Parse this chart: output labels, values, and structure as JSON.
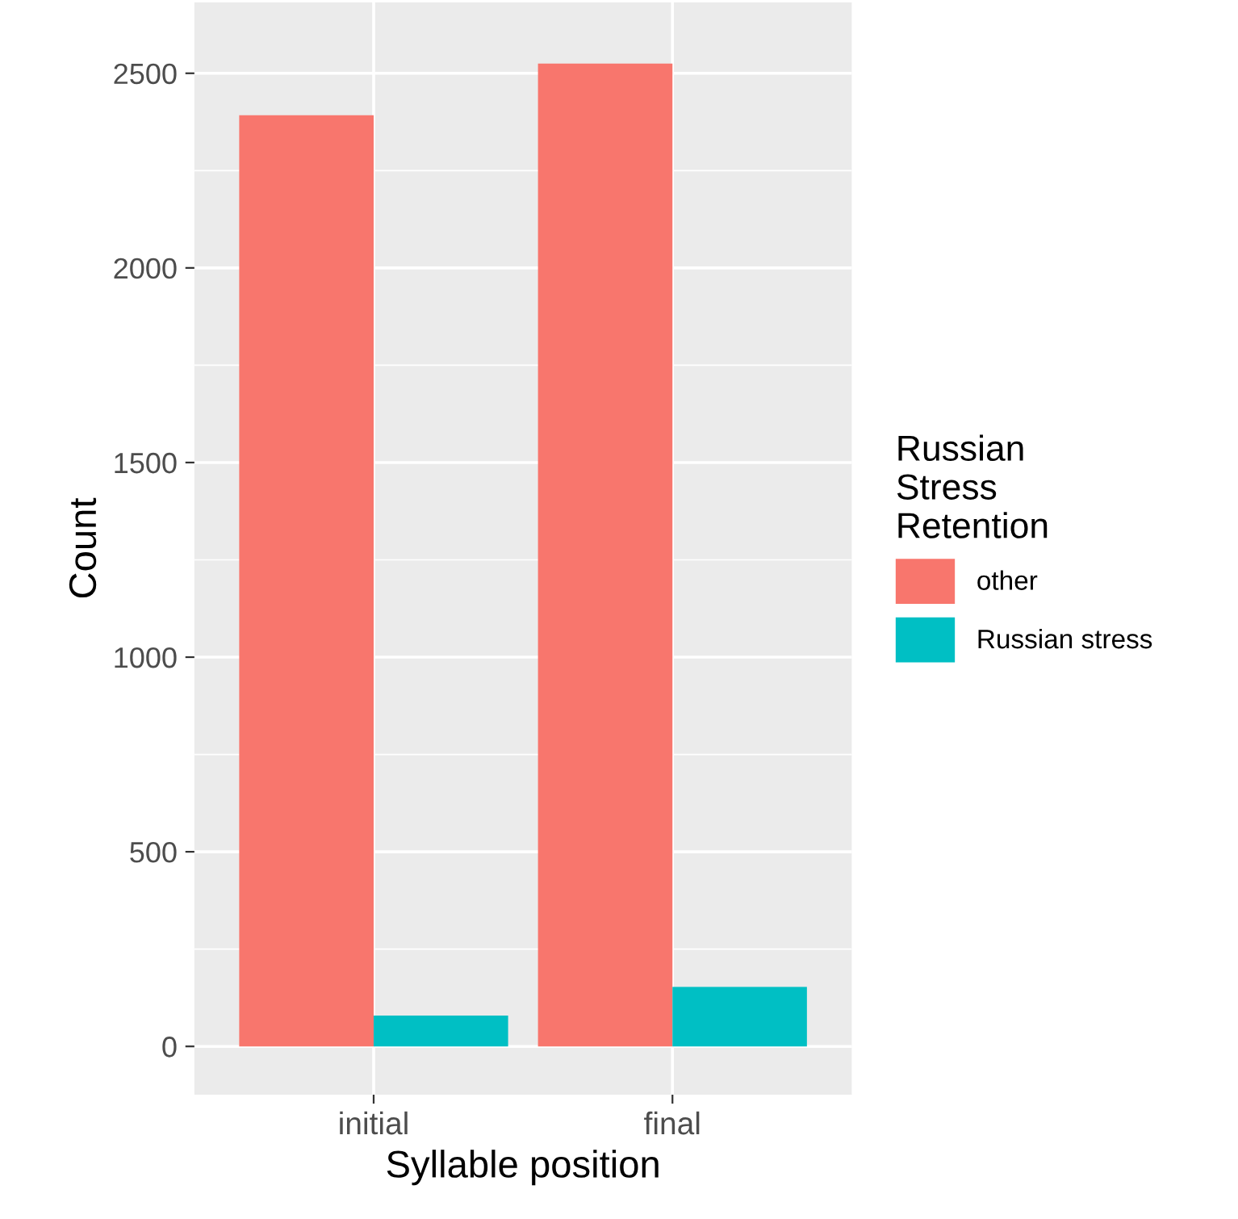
{
  "chart_data": {
    "type": "bar",
    "xlabel": "Syllable position",
    "ylabel": "Count",
    "legend_title": "Russian\nStress\nRetention",
    "categories": [
      "initial",
      "final"
    ],
    "series": [
      {
        "name": "other",
        "color": "#f8766d",
        "values": [
          2392,
          2525
        ]
      },
      {
        "name": "Russian stress",
        "color": "#00bfc4",
        "values": [
          79,
          153
        ]
      }
    ],
    "ylim": [
      -124,
      2682
    ],
    "yticks": [
      0,
      {
        "value": 250,
        "label": null
      },
      500,
      {
        "value": 750,
        "label": null
      },
      1000,
      {
        "value": 1250,
        "label": null
      },
      1500,
      {
        "value": 1750,
        "label": null
      },
      2000,
      {
        "value": 2250,
        "label": null
      },
      2500
    ],
    "grid": true,
    "legend": "right"
  }
}
